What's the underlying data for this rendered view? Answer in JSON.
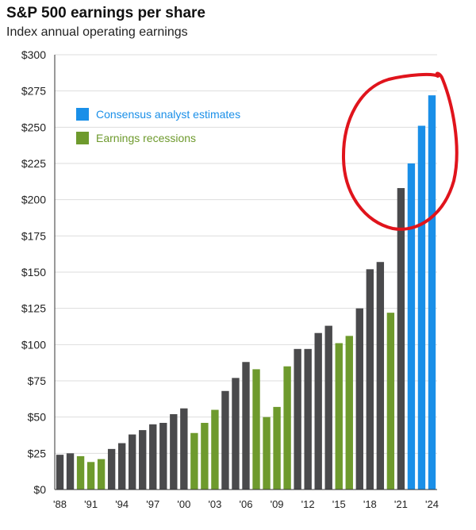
{
  "header": {
    "title": "S&P 500 earnings per share",
    "subtitle": "Index annual operating earnings"
  },
  "colors": {
    "normal": "#4a4a4c",
    "recession": "#6e9a2d",
    "estimate": "#1a8fe8",
    "gridline": "#dddddd",
    "annotation": "#e0141c",
    "legend_estimate_text": "#1a8fe8",
    "legend_recession_text": "#6e9a2d"
  },
  "chart_data": {
    "type": "bar",
    "title": "S&P 500 earnings per share",
    "subtitle": "Index annual operating earnings",
    "ylim": [
      0,
      300
    ],
    "y_ticks": [
      "$0",
      "$25",
      "$50",
      "$75",
      "$100",
      "$125",
      "$150",
      "$175",
      "$200",
      "$225",
      "$250",
      "$275",
      "$300"
    ],
    "x_tick_labels": [
      "'88",
      "'91",
      "'94",
      "'97",
      "'00",
      "'03",
      "'06",
      "'09",
      "'12",
      "'15",
      "'18",
      "'21",
      "'24"
    ],
    "legend": [
      {
        "label": "Consensus analyst estimates",
        "kind": "estimate"
      },
      {
        "label": "Earnings recessions",
        "kind": "recession"
      }
    ],
    "legend_position": "top-left",
    "grid": true,
    "categories": [
      "1988",
      "1989",
      "1990",
      "1991",
      "1992",
      "1993",
      "1994",
      "1995",
      "1996",
      "1997",
      "1998",
      "1999",
      "2000",
      "2001",
      "2002",
      "2003",
      "2004",
      "2005",
      "2006",
      "2007",
      "2008",
      "2009",
      "2010",
      "2011",
      "2012",
      "2013",
      "2014",
      "2015",
      "2016",
      "2017",
      "2018",
      "2019",
      "2020",
      "2021",
      "2022",
      "2023",
      "2024"
    ],
    "values": [
      24,
      25,
      23,
      19,
      21,
      28,
      32,
      38,
      41,
      45,
      46,
      52,
      56,
      39,
      46,
      55,
      68,
      77,
      88,
      83,
      50,
      57,
      85,
      97,
      97,
      108,
      113,
      101,
      106,
      125,
      152,
      157,
      122,
      208,
      225,
      251,
      272
    ],
    "kinds": [
      "normal",
      "normal",
      "recession",
      "recession",
      "recession",
      "normal",
      "normal",
      "normal",
      "normal",
      "normal",
      "normal",
      "normal",
      "normal",
      "recession",
      "recession",
      "recession",
      "normal",
      "normal",
      "normal",
      "recession",
      "recession",
      "recession",
      "recession",
      "normal",
      "normal",
      "normal",
      "normal",
      "recession",
      "recession",
      "normal",
      "normal",
      "normal",
      "recession",
      "normal",
      "estimate",
      "estimate",
      "estimate"
    ],
    "annotation": "hand-drawn-circle-around-2021-2024"
  }
}
